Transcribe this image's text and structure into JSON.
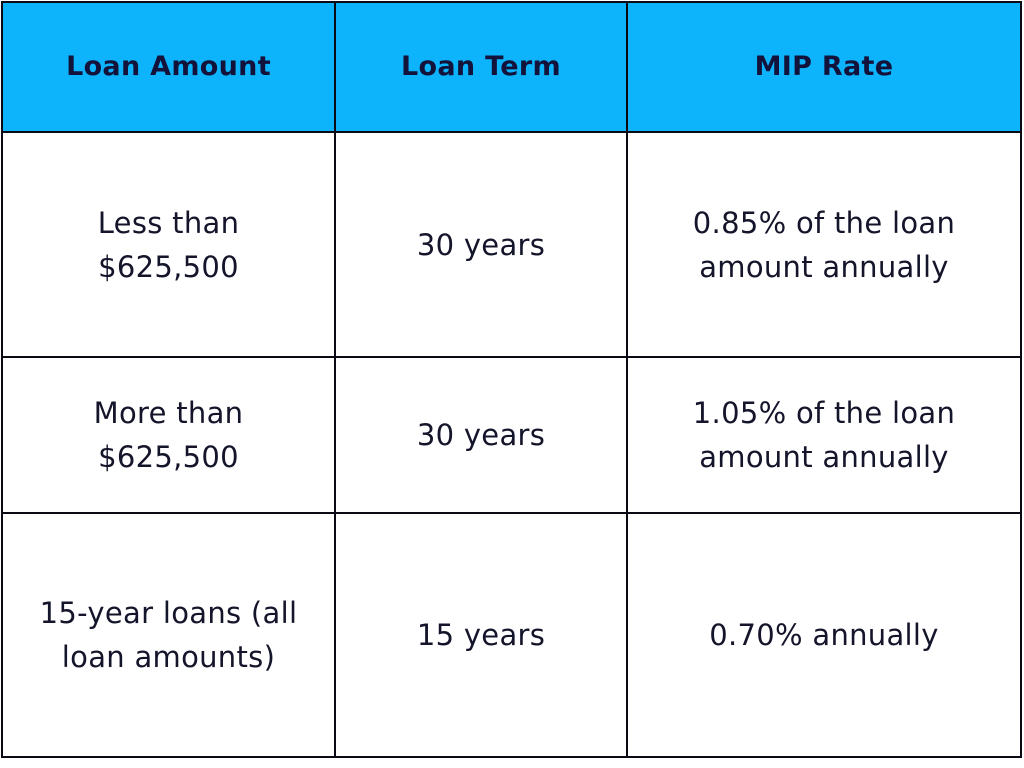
{
  "colors": {
    "header_background": "#0db4fb",
    "border": "#0a0a14",
    "text": "#14142b",
    "body_background": "#ffffff"
  },
  "chart_data": {
    "type": "table",
    "columns": [
      "Loan Amount",
      "Loan Term",
      "MIP Rate"
    ],
    "rows": [
      [
        "Less than\n$625,500",
        "30 years",
        "0.85% of the loan\namount annually"
      ],
      [
        "More than\n$625,500",
        "30 years",
        "1.05% of the loan\namount annually"
      ],
      [
        "15-year loans (all\nloan amounts)",
        "15 years",
        "0.70% annually"
      ]
    ]
  }
}
